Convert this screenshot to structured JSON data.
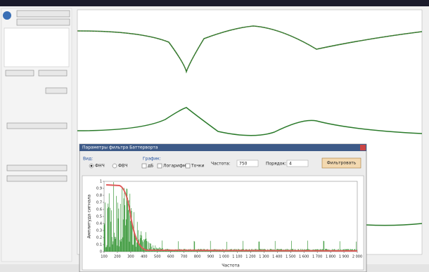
{
  "dialog": {
    "title": "Параметры фильтра Баттерворта",
    "type_label": "Вид:",
    "lowpass": "ФНЧ",
    "highpass": "ФВЧ",
    "graph_label": "График:",
    "db": "дБ",
    "log": "Логарифм",
    "points": "Точки",
    "freq_label": "Частота:",
    "freq_value": "750",
    "order_label": "Порядок:",
    "order_value": "4",
    "filter_button": "Фильтровать"
  },
  "chart_data": {
    "type": "line",
    "x_label": "Частота",
    "y_label": "Амплитуда сигнала",
    "xlim": [
      100,
      2000
    ],
    "ylim": [
      0,
      1
    ],
    "xticks": [
      100,
      200,
      300,
      400,
      500,
      600,
      700,
      800,
      900,
      {
        "value": 1000,
        "label": "1 000"
      },
      {
        "value": 1100,
        "label": "1 100"
      },
      {
        "value": 1200,
        "label": "1 200"
      },
      {
        "value": 1300,
        "label": "1 300"
      },
      {
        "value": 1400,
        "label": "1 400"
      },
      {
        "value": 1500,
        "label": "1 500"
      },
      {
        "value": 1600,
        "label": "1 600"
      },
      {
        "value": 1700,
        "label": "1 700"
      },
      {
        "value": 1800,
        "label": "1 800"
      },
      {
        "value": 1900,
        "label": "1 900"
      },
      {
        "value": 2000,
        "label": "2 000"
      }
    ],
    "yticks": [
      0,
      0.1,
      0.2,
      0.3,
      0.4,
      0.5,
      0.6,
      0.7,
      0.8,
      0.9,
      1
    ]
  }
}
